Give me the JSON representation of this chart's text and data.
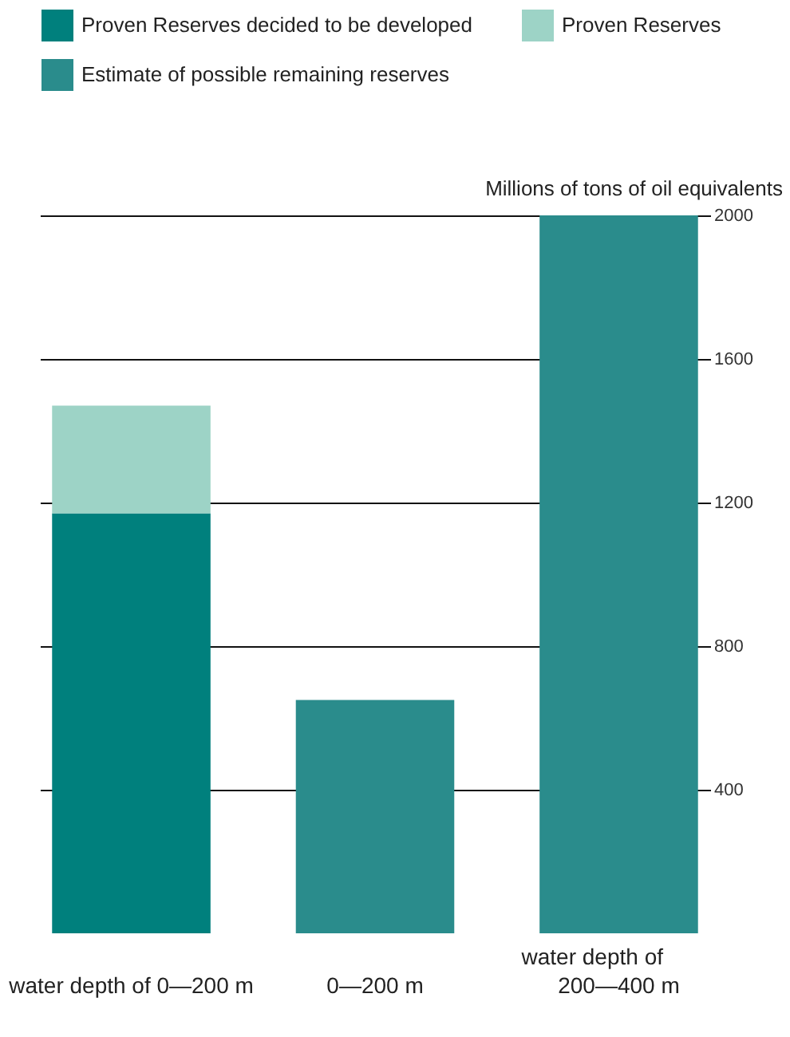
{
  "chart_data": {
    "type": "bar",
    "stacked": true,
    "categories": [
      "water depth of 0—200 m",
      "0—200 m",
      "200—400 m"
    ],
    "xlabel": "water depth of",
    "ylabel": "Millions of tons of oil equivalents",
    "series": [
      {
        "name": "Proven Reserves decided to be developed",
        "color": "#00807d",
        "values": [
          1170,
          null,
          null
        ]
      },
      {
        "name": "Proven Reserves",
        "color": "#9dd3c6",
        "values": [
          300,
          null,
          null
        ]
      },
      {
        "name": "Estimate of possible remaining reserves",
        "color": "#2a8c8c",
        "values": [
          null,
          650,
          2000
        ]
      }
    ],
    "ylim": [
      0,
      2000
    ],
    "yticks": [
      400,
      800,
      1200,
      1600,
      2000
    ],
    "grid": "y",
    "legend": "top left"
  }
}
